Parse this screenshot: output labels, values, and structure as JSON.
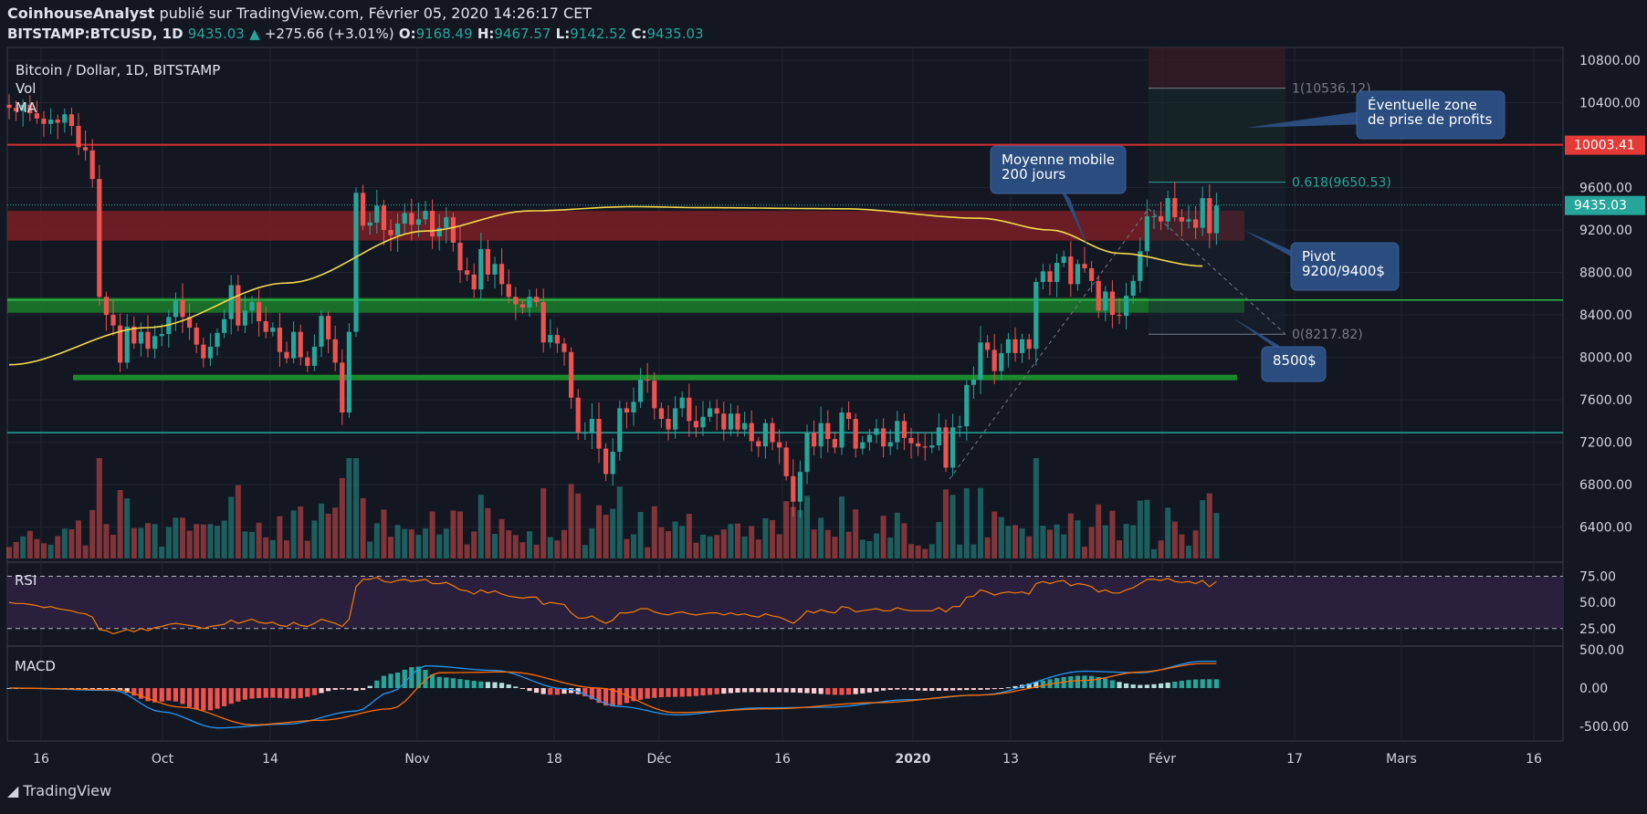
{
  "header": {
    "author": "CoinhouseAnalyst",
    "published": "publié sur TradingView.com, Février 05, 2020 14:26:17 CET",
    "symbol": "BITSTAMP:BTCUSD, 1D",
    "last": "9435.03",
    "change": "+275.66 (+3.01%)",
    "o_label": "O:",
    "o": "9168.49",
    "h_label": "H:",
    "h": "9467.57",
    "l_label": "L:",
    "l": "9142.52",
    "c_label": "C:",
    "c": "9435.03"
  },
  "legend": {
    "title": "Bitcoin / Dollar, 1D, BITSTAMP",
    "vol": "Vol",
    "ma": "MA",
    "rsi": "RSI",
    "macd": "MACD"
  },
  "colors": {
    "background": "#131722",
    "up": "#26a69a",
    "down": "#ef5350",
    "ma": "#f5d84a",
    "rsi_line": "#f57c00",
    "macd_line": "#2196f3",
    "signal_line": "#ff6d00",
    "resistance_zone": "#7a1f25",
    "support_zone": "#1b7f2a",
    "callout": "#2a4c7f"
  },
  "chart_data": {
    "type": "candlestick",
    "x_tick_labels": [
      "16",
      "Oct",
      "14",
      "Nov",
      "18",
      "Déc",
      "16",
      "2020",
      "13",
      "Févr",
      "17",
      "Mars",
      "16"
    ],
    "y_tick_labels": [
      "10800.00",
      "10400.00",
      "10000.00",
      "9600.00",
      "9200.00",
      "8800.00",
      "8400.00",
      "8000.00",
      "7600.00",
      "7200.00",
      "6800.00",
      "6400.00"
    ],
    "ylim": [
      6070,
      10920
    ],
    "price_labels": {
      "red_level": "10003.41",
      "last": "9435.03"
    },
    "candle_start_date": "2019-09-12",
    "closes": [
      10350,
      10320,
      10380,
      10300,
      10250,
      10200,
      10240,
      10210,
      10290,
      10180,
      9980,
      9950,
      9680,
      8570,
      8400,
      8300,
      7950,
      8290,
      8130,
      8240,
      8080,
      8200,
      8220,
      8380,
      8540,
      8380,
      8280,
      8120,
      7990,
      8100,
      8230,
      8360,
      8680,
      8300,
      8440,
      8520,
      8340,
      8240,
      8280,
      8050,
      7990,
      8240,
      8000,
      7920,
      8100,
      8390,
      8170,
      7950,
      7480,
      8240,
      9550,
      9240,
      9270,
      9430,
      9200,
      9150,
      9260,
      9360,
      9250,
      9300,
      9380,
      9140,
      9220,
      9320,
      9080,
      8820,
      8780,
      8640,
      9020,
      8780,
      8880,
      8690,
      8570,
      8500,
      8470,
      8570,
      8520,
      8140,
      8210,
      8130,
      8050,
      7620,
      7290,
      7290,
      7420,
      7140,
      6900,
      7110,
      7520,
      7480,
      7580,
      7790,
      7780,
      7520,
      7420,
      7320,
      7520,
      7620,
      7400,
      7340,
      7440,
      7520,
      7470,
      7320,
      7470,
      7320,
      7380,
      7210,
      7160,
      7380,
      7200,
      7150,
      6880,
      6640,
      6920,
      7290,
      7160,
      7380,
      7230,
      7150,
      7480,
      7420,
      7140,
      7200,
      7270,
      7330,
      7160,
      7200,
      7400,
      7240,
      7190,
      7160,
      7150,
      7170,
      7340,
      6960,
      7340,
      7350,
      7740,
      7790,
      8140,
      8070,
      7870,
      8040,
      8170,
      8040,
      8170,
      8080,
      8710,
      8810,
      8710,
      8890,
      8950,
      8690,
      8880,
      8840,
      8720,
      8440,
      8620,
      8400,
      8390,
      8580,
      8720,
      9000,
      9330,
      9330,
      9280,
      9500,
      9320,
      9280,
      9300,
      9220,
      9500,
      9170,
      9430
    ],
    "ma_series": {
      "name": "MA",
      "from_index": 0,
      "to_index": 172,
      "samples": [
        [
          0,
          7930
        ],
        [
          20,
          8280
        ],
        [
          40,
          8700
        ],
        [
          60,
          9190
        ],
        [
          75,
          9380
        ],
        [
          90,
          9420
        ],
        [
          100,
          9410
        ],
        [
          120,
          9400
        ],
        [
          140,
          9310
        ],
        [
          150,
          9200
        ],
        [
          160,
          8980
        ],
        [
          172,
          8860
        ]
      ]
    },
    "zones": [
      {
        "type": "resistance",
        "from": 9100,
        "to": 9380
      },
      {
        "type": "support",
        "from": 8420,
        "to": 8560
      },
      {
        "type": "support_line",
        "value": 7810
      }
    ],
    "horizontal_levels": [
      10003.41,
      9435.03,
      8540,
      7290
    ],
    "fib": {
      "levels": [
        {
          "label": "1(10536.12)",
          "value": 10536.12
        },
        {
          "label": "0.618(9650.53)",
          "value": 9650.53
        },
        {
          "label": "0(8217.82)",
          "value": 8217.82
        }
      ]
    },
    "annotations": [
      {
        "text": [
          "Éventuelle zone",
          "de prise de profits"
        ]
      },
      {
        "text": [
          "Moyenne mobile",
          "200 jours"
        ]
      },
      {
        "text": [
          "Pivot",
          "9200/9400$"
        ]
      },
      {
        "text": [
          "8500$"
        ]
      }
    ],
    "rsi": {
      "levels": [
        75,
        50,
        25
      ],
      "level_labels": [
        "75.00",
        "50.00",
        "25.00"
      ],
      "values": [
        50,
        49,
        49,
        48,
        47,
        45,
        46,
        44,
        43,
        42,
        40,
        39,
        36,
        24,
        23,
        20,
        22,
        24,
        22,
        25,
        23,
        26,
        27,
        29,
        30,
        29,
        28,
        27,
        25,
        27,
        28,
        29,
        33,
        30,
        32,
        34,
        31,
        30,
        31,
        28,
        27,
        31,
        28,
        27,
        30,
        34,
        32,
        30,
        27,
        34,
        65,
        72,
        72,
        74,
        70,
        69,
        71,
        72,
        70,
        71,
        72,
        68,
        68,
        69,
        66,
        62,
        61,
        58,
        62,
        59,
        61,
        58,
        56,
        55,
        54,
        55,
        55,
        48,
        50,
        49,
        48,
        40,
        35,
        35,
        37,
        33,
        30,
        33,
        40,
        40,
        41,
        44,
        44,
        41,
        39,
        38,
        40,
        41,
        39,
        38,
        39,
        40,
        40,
        38,
        40,
        38,
        39,
        37,
        36,
        39,
        37,
        36,
        33,
        30,
        35,
        42,
        40,
        43,
        41,
        40,
        46,
        45,
        41,
        42,
        43,
        44,
        42,
        42,
        45,
        43,
        42,
        42,
        42,
        42,
        45,
        41,
        46,
        46,
        55,
        56,
        62,
        60,
        57,
        59,
        60,
        59,
        60,
        58,
        68,
        70,
        68,
        70,
        71,
        66,
        68,
        67,
        65,
        60,
        62,
        59,
        59,
        62,
        64,
        68,
        72,
        72,
        71,
        73,
        70,
        69,
        70,
        68,
        71,
        65,
        70
      ]
    },
    "macd": {
      "level_labels": [
        "500.00",
        "0.00",
        "-500.00"
      ],
      "macd_samples": [
        [
          0,
          0
        ],
        [
          15,
          -30
        ],
        [
          22,
          -310
        ],
        [
          30,
          -520
        ],
        [
          40,
          -470
        ],
        [
          50,
          -300
        ],
        [
          55,
          -50
        ],
        [
          60,
          290
        ],
        [
          70,
          230
        ],
        [
          80,
          -10
        ],
        [
          88,
          -240
        ],
        [
          96,
          -350
        ],
        [
          108,
          -260
        ],
        [
          118,
          -250
        ],
        [
          130,
          -150
        ],
        [
          140,
          -90
        ],
        [
          155,
          220
        ],
        [
          163,
          200
        ],
        [
          172,
          350
        ]
      ],
      "signal_samples": [
        [
          0,
          0
        ],
        [
          15,
          -20
        ],
        [
          25,
          -250
        ],
        [
          35,
          -480
        ],
        [
          45,
          -420
        ],
        [
          55,
          -270
        ],
        [
          62,
          200
        ],
        [
          72,
          210
        ],
        [
          85,
          0
        ],
        [
          96,
          -320
        ],
        [
          110,
          -270
        ],
        [
          125,
          -190
        ],
        [
          140,
          -90
        ],
        [
          155,
          100
        ],
        [
          163,
          210
        ],
        [
          172,
          320
        ]
      ],
      "histogram_note": "derived"
    }
  },
  "footer": {
    "brand": "TradingView"
  }
}
